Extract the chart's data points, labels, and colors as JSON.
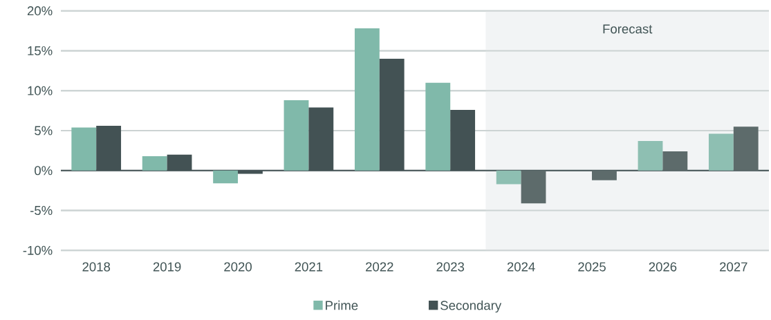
{
  "chart_data": {
    "type": "bar",
    "categories": [
      "2018",
      "2019",
      "2020",
      "2021",
      "2022",
      "2023",
      "2024",
      "2025",
      "2026",
      "2027"
    ],
    "series": [
      {
        "name": "Prime",
        "color": "#80b9aa",
        "colors": [
          "#80b9aa",
          "#80b9aa",
          "#80b9aa",
          "#80b9aa",
          "#80b9aa",
          "#80b9aa",
          "#8ebfb2",
          "#8ebfb2",
          "#8ebfb2",
          "#8ebfb2"
        ],
        "values": [
          5.4,
          1.8,
          -1.6,
          8.8,
          17.8,
          11.0,
          -1.7,
          0,
          3.7,
          4.6
        ]
      },
      {
        "name": "Secondary",
        "color": "#435254",
        "colors": [
          "#435254",
          "#435254",
          "#435254",
          "#435254",
          "#435254",
          "#435254",
          "#5d6b6b",
          "#5d6b6b",
          "#5d6b6b",
          "#5d6b6b"
        ],
        "values": [
          5.6,
          2.0,
          -0.4,
          7.9,
          14.0,
          7.6,
          -4.1,
          -1.2,
          2.4,
          5.5
        ]
      }
    ],
    "ylim": [
      -10,
      20
    ],
    "yticks": [
      {
        "value": -10,
        "label": "-10%"
      },
      {
        "value": -5,
        "label": "-5%"
      },
      {
        "value": 0,
        "label": "0%"
      },
      {
        "value": 5,
        "label": "5%"
      },
      {
        "value": 10,
        "label": "10%"
      },
      {
        "value": 15,
        "label": "15%"
      },
      {
        "value": 20,
        "label": "20%"
      }
    ],
    "bands": [
      {
        "axis": "x",
        "from": "2024",
        "to": "2027",
        "label": "Forecast",
        "color": "#f2f4f5"
      }
    ],
    "grid": "y",
    "legend": "bottom"
  }
}
